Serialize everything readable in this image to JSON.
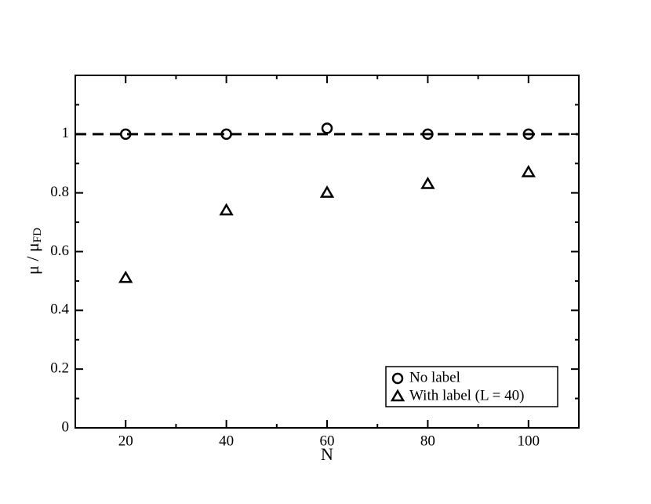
{
  "chart_data": {
    "type": "scatter",
    "xlabel": "N",
    "ylabel": "μ / μ",
    "ylabel_sub": "FD",
    "xlim": [
      10,
      110
    ],
    "xticks": [
      20,
      40,
      60,
      80,
      100
    ],
    "xminorticks": [
      10,
      30,
      50,
      70,
      90,
      110
    ],
    "ylim": [
      0,
      1.2
    ],
    "yticks": [
      0,
      0.2,
      0.4,
      0.6,
      0.8,
      1
    ],
    "yminorticks": [
      0.1,
      0.3,
      0.5,
      0.7,
      0.9,
      1.1
    ],
    "hline": 1,
    "legend": "lower right",
    "series": [
      {
        "name": "No label",
        "color": "#000000",
        "marker": "circle",
        "x": [
          20,
          40,
          60,
          80,
          100
        ],
        "values": [
          1,
          1,
          1.02,
          1,
          1
        ]
      },
      {
        "name": "With label (L = 40)",
        "color": "#000000",
        "marker": "triangle",
        "x": [
          20,
          40,
          60,
          80,
          100
        ],
        "values": [
          0.51,
          0.74,
          0.8,
          0.83,
          0.87
        ]
      }
    ]
  }
}
